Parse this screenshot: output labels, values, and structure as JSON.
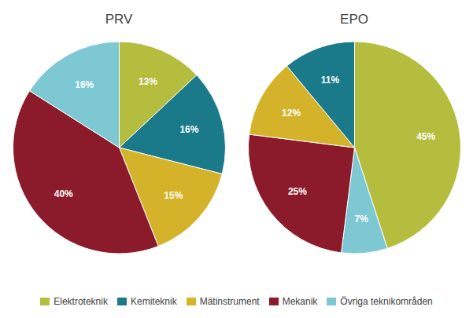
{
  "chart_data": [
    {
      "type": "pie",
      "title": "PRV",
      "categories": [
        "Elektroteknik",
        "Kemiteknik",
        "Mätinstrument",
        "Mekanik",
        "Övriga teknikområden"
      ],
      "values": [
        13,
        16,
        15,
        40,
        16
      ],
      "value_labels": [
        "13%",
        "16%",
        "15%",
        "40%",
        "16%"
      ],
      "colors": [
        "#b5bd3f",
        "#1a7a8a",
        "#d4b32a",
        "#8b1a2a",
        "#7ec8d4"
      ],
      "data_labels": true,
      "legend": "bottom"
    },
    {
      "type": "pie",
      "title": "EPO",
      "categories": [
        "Elektroteknik",
        "Övriga teknikområden",
        "Mekanik",
        "Mätinstrument",
        "Kemiteknik"
      ],
      "values": [
        45,
        7,
        25,
        12,
        11
      ],
      "value_labels": [
        "45%",
        "7%",
        "25%",
        "12%",
        "11%"
      ],
      "colors": [
        "#b5bd3f",
        "#7ec8d4",
        "#8b1a2a",
        "#d4b32a",
        "#1a7a8a"
      ],
      "data_labels": true,
      "legend": "bottom"
    }
  ]
}
